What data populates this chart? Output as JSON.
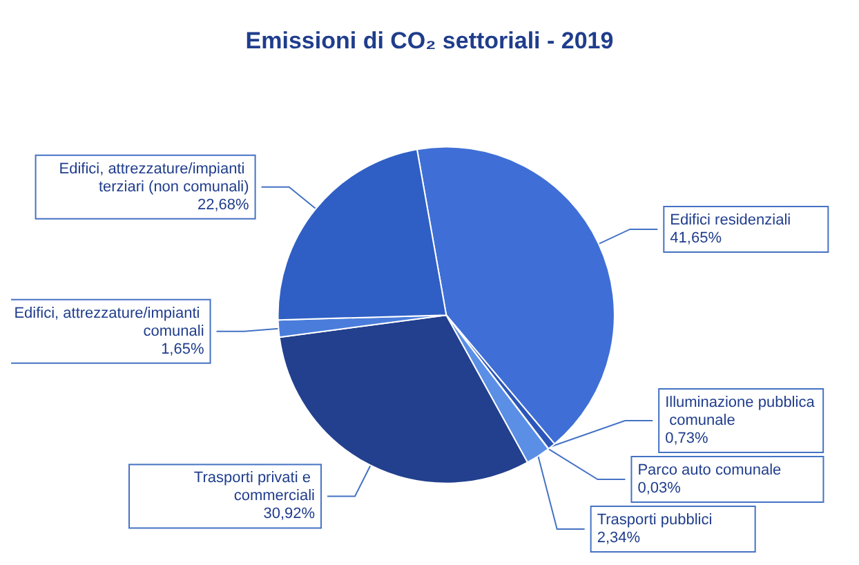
{
  "chart_data": {
    "type": "pie",
    "title": "Emissioni di CO₂ settoriali - 2019",
    "categories": [
      "Edifici residenziali",
      "Illuminazione pubblica comunale",
      "Parco auto comunale",
      "Trasporti pubblici",
      "Trasporti privati e commerciali",
      "Edifici, attrezzature/impianti comunali",
      "Edifici, attrezzature/impianti terziari (non comunali)"
    ],
    "values": [
      41.65,
      0.73,
      0.03,
      2.34,
      30.92,
      1.65,
      22.68
    ],
    "value_labels": [
      "41,65%",
      "0,73%",
      "0,03%",
      "2,34%",
      "30,92%",
      "1,65%",
      "22,68%"
    ],
    "colors": [
      "#3f6fd6",
      "#2c56b8",
      "#2a50a8",
      "#5b8fe6",
      "#23408e",
      "#4a7ddb",
      "#2f5fc4"
    ],
    "legend": false
  }
}
